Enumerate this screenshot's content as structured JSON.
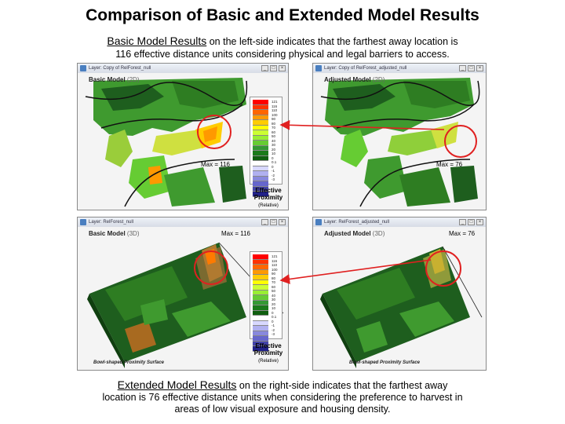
{
  "header": {
    "title": "Comparison of Basic and Extended Model Results"
  },
  "intro": {
    "lead": "Basic Model Results",
    "line1_rest": " on the left-side indicates that the farthest away location is",
    "line2": "116 effective distance units considering physical and legal barriers to access."
  },
  "outro": {
    "lead": "Extended Model Results",
    "line1_rest": " on the right-side indicates that the farthest away",
    "line2": "location is 76 effective distance units when considering the preference to harvest in",
    "line3": "areas of low visual exposure and housing density."
  },
  "panels": {
    "top_left": {
      "window_title": "Layer: Copy of RelForest_null",
      "title": "Basic Model",
      "mode": "(2D)"
    },
    "top_right": {
      "window_title": "Layer: Copy of RelForest_adjusted_null",
      "title": "Adjusted Model",
      "mode": "(2D)"
    },
    "bottom_left": {
      "window_title": "Layer: RelForest_null",
      "title": "Basic Model",
      "mode": "(3D)",
      "caption": "Bowl-shaped Proximity Surface"
    },
    "bottom_right": {
      "window_title": "Layer: RelForest_adjusted_null",
      "title": "Adjusted Model",
      "mode": "(3D)",
      "caption": "Bowl-shaped Proximity Surface"
    }
  },
  "window_buttons": {
    "minimize": "_",
    "maximize": "□",
    "close": "×"
  },
  "max_labels": {
    "tl": "Max = 116",
    "tr": "Max = 76",
    "bl": "Max = 116",
    "br": "Max = 76"
  },
  "legend": {
    "caption_line1": "Effective",
    "caption_line2": "Proximity",
    "caption_sub": "(Relative)",
    "ticks": [
      "121",
      "116",
      "110",
      "100",
      "90",
      "80",
      "70",
      "60",
      "50",
      "40",
      "30",
      "20",
      "10",
      "0",
      "0.1",
      "0",
      "-1",
      "-2",
      "-3"
    ],
    "colors": [
      "#ff0000",
      "#ff3300",
      "#ff6600",
      "#ff9900",
      "#ffcc00",
      "#ffff00",
      "#ccff33",
      "#99ee33",
      "#66cc33",
      "#339933",
      "#1a7a1a",
      "#0f5f0f",
      "#ffffff",
      "#d8d8ff",
      "#b0b0f0",
      "#8888dd",
      "#6666cc",
      "#4444aa",
      "#222288"
    ]
  },
  "colors": {
    "highlight_circle": "#e02020",
    "map_dark": "#1e5e1e",
    "map_mid": "#3f9a2f",
    "map_light": "#9acd3a",
    "map_hot": "#ff7a00"
  }
}
